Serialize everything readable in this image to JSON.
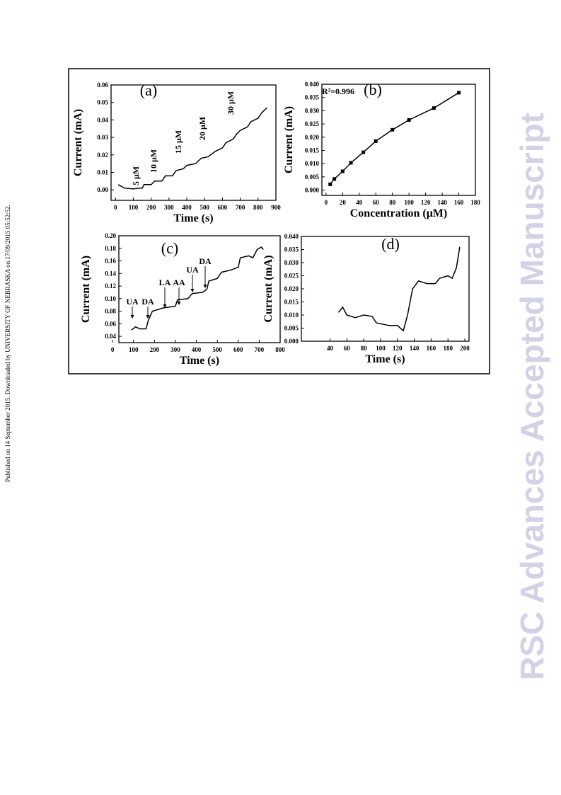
{
  "sidebar": "Published on 14 September 2015. Downloaded by UNIVERSITY OF NEBRASKA on 17/09/2015 05:52:52.",
  "watermark": "RSC Advances Accepted Manuscript",
  "chart_data": [
    {
      "type": "line",
      "panel_label": "(a)",
      "xlabel": "Time (s)",
      "ylabel": "Current (mA)",
      "x": [
        15,
        50,
        100,
        130,
        150,
        160,
        200,
        220,
        260,
        280,
        320,
        340,
        380,
        400,
        450,
        480,
        520,
        560,
        600,
        620,
        660,
        680,
        700,
        740,
        760,
        800,
        820,
        850
      ],
      "values": [
        0.003,
        0.001,
        0.0005,
        0.001,
        0.001,
        0.003,
        0.003,
        0.005,
        0.005,
        0.008,
        0.008,
        0.011,
        0.012,
        0.014,
        0.015,
        0.018,
        0.019,
        0.022,
        0.024,
        0.027,
        0.029,
        0.032,
        0.034,
        0.036,
        0.039,
        0.041,
        0.044,
        0.047
      ],
      "xlim": [
        -25,
        900
      ],
      "xticks": [
        0,
        100,
        200,
        300,
        400,
        500,
        600,
        700,
        800,
        900
      ],
      "ylim": [
        -0.006,
        0.06
      ],
      "yticks": [
        {
          "value": 0,
          "label": "0.00"
        },
        0.01,
        0.02,
        0.03,
        0.04,
        0.05,
        0.06
      ],
      "annotations": [
        "5 μM",
        "10 μM",
        "15 μM",
        "20 μM",
        "30 μM"
      ],
      "color": "#000000"
    },
    {
      "type": "line",
      "markers": true,
      "panel_label": "(b)",
      "xlabel": "Concentration (μM)",
      "ylabel": "Current (mA)",
      "x": [
        5,
        10,
        20,
        30,
        45,
        60,
        80,
        100,
        130,
        160
      ],
      "values": [
        0.0022,
        0.0042,
        0.0071,
        0.0103,
        0.0143,
        0.0185,
        0.0228,
        0.0265,
        0.031,
        0.0368
      ],
      "xlim": [
        -5,
        180
      ],
      "xticks": [
        0,
        20,
        40,
        60,
        80,
        100,
        120,
        140,
        160,
        180
      ],
      "ylim": [
        -0.002,
        0.04
      ],
      "yticks": [
        {
          "value": 0,
          "label": "0.000"
        },
        0.005,
        {
          "value": 0.01,
          "label": "0.010"
        },
        0.015,
        {
          "value": 0.02,
          "label": "0.020"
        },
        0.025,
        {
          "value": 0.03,
          "label": "0.030"
        },
        0.035,
        {
          "value": 0.04,
          "label": "0.040"
        }
      ],
      "annotations": [
        "R²=0.996"
      ],
      "color": "#000000"
    },
    {
      "type": "line",
      "panel_label": "(c)",
      "xlabel": "Time (s)",
      "ylabel": "Current (mA)",
      "x": [
        90,
        110,
        130,
        160,
        170,
        190,
        240,
        260,
        300,
        310,
        360,
        380,
        430,
        450,
        460,
        500,
        520,
        560,
        600,
        610,
        650,
        670,
        690,
        710,
        720
      ],
      "values": [
        0.05,
        0.055,
        0.052,
        0.052,
        0.065,
        0.08,
        0.085,
        0.086,
        0.088,
        0.098,
        0.1,
        0.108,
        0.11,
        0.115,
        0.128,
        0.132,
        0.142,
        0.145,
        0.15,
        0.165,
        0.168,
        0.165,
        0.178,
        0.182,
        0.178
      ],
      "xlim": [
        30,
        800
      ],
      "xticks": [
        0,
        100,
        200,
        300,
        400,
        500,
        600,
        700,
        800
      ],
      "ylim": [
        0.03,
        0.2
      ],
      "yticks": [
        0.04,
        0.06,
        0.08,
        {
          "value": 0.1,
          "label": "0.10"
        },
        0.12,
        0.14,
        0.16,
        0.18,
        {
          "value": 0.2,
          "label": "0.20"
        }
      ],
      "annotations": [
        "UA",
        "DA",
        "LA",
        "AA",
        "UA",
        "DA"
      ],
      "color": "#000000"
    },
    {
      "type": "line",
      "panel_label": "(d)",
      "xlabel": "Time (s)",
      "ylabel": "Current (mA)",
      "x": [
        50,
        55,
        60,
        70,
        80,
        90,
        95,
        110,
        120,
        127,
        132,
        138,
        145,
        155,
        165,
        170,
        180,
        185,
        190,
        194
      ],
      "values": [
        0.011,
        0.013,
        0.01,
        0.009,
        0.01,
        0.0095,
        0.007,
        0.006,
        0.006,
        0.004,
        0.01,
        0.02,
        0.023,
        0.022,
        0.022,
        0.024,
        0.025,
        0.024,
        0.028,
        0.036
      ],
      "xlim": [
        6,
        205
      ],
      "xticks": [
        40,
        60,
        80,
        100,
        120,
        140,
        160,
        180,
        200
      ],
      "ylim": [
        0,
        0.04
      ],
      "yticks": [
        {
          "value": 0,
          "label": "0.000"
        },
        0.005,
        {
          "value": 0.01,
          "label": "0.010"
        },
        0.015,
        {
          "value": 0.02,
          "label": "0.020"
        },
        0.025,
        {
          "value": 0.03,
          "label": "0.030"
        },
        0.035,
        {
          "value": 0.04,
          "label": "0.040"
        }
      ],
      "annotations": [],
      "color": "#000000"
    }
  ]
}
